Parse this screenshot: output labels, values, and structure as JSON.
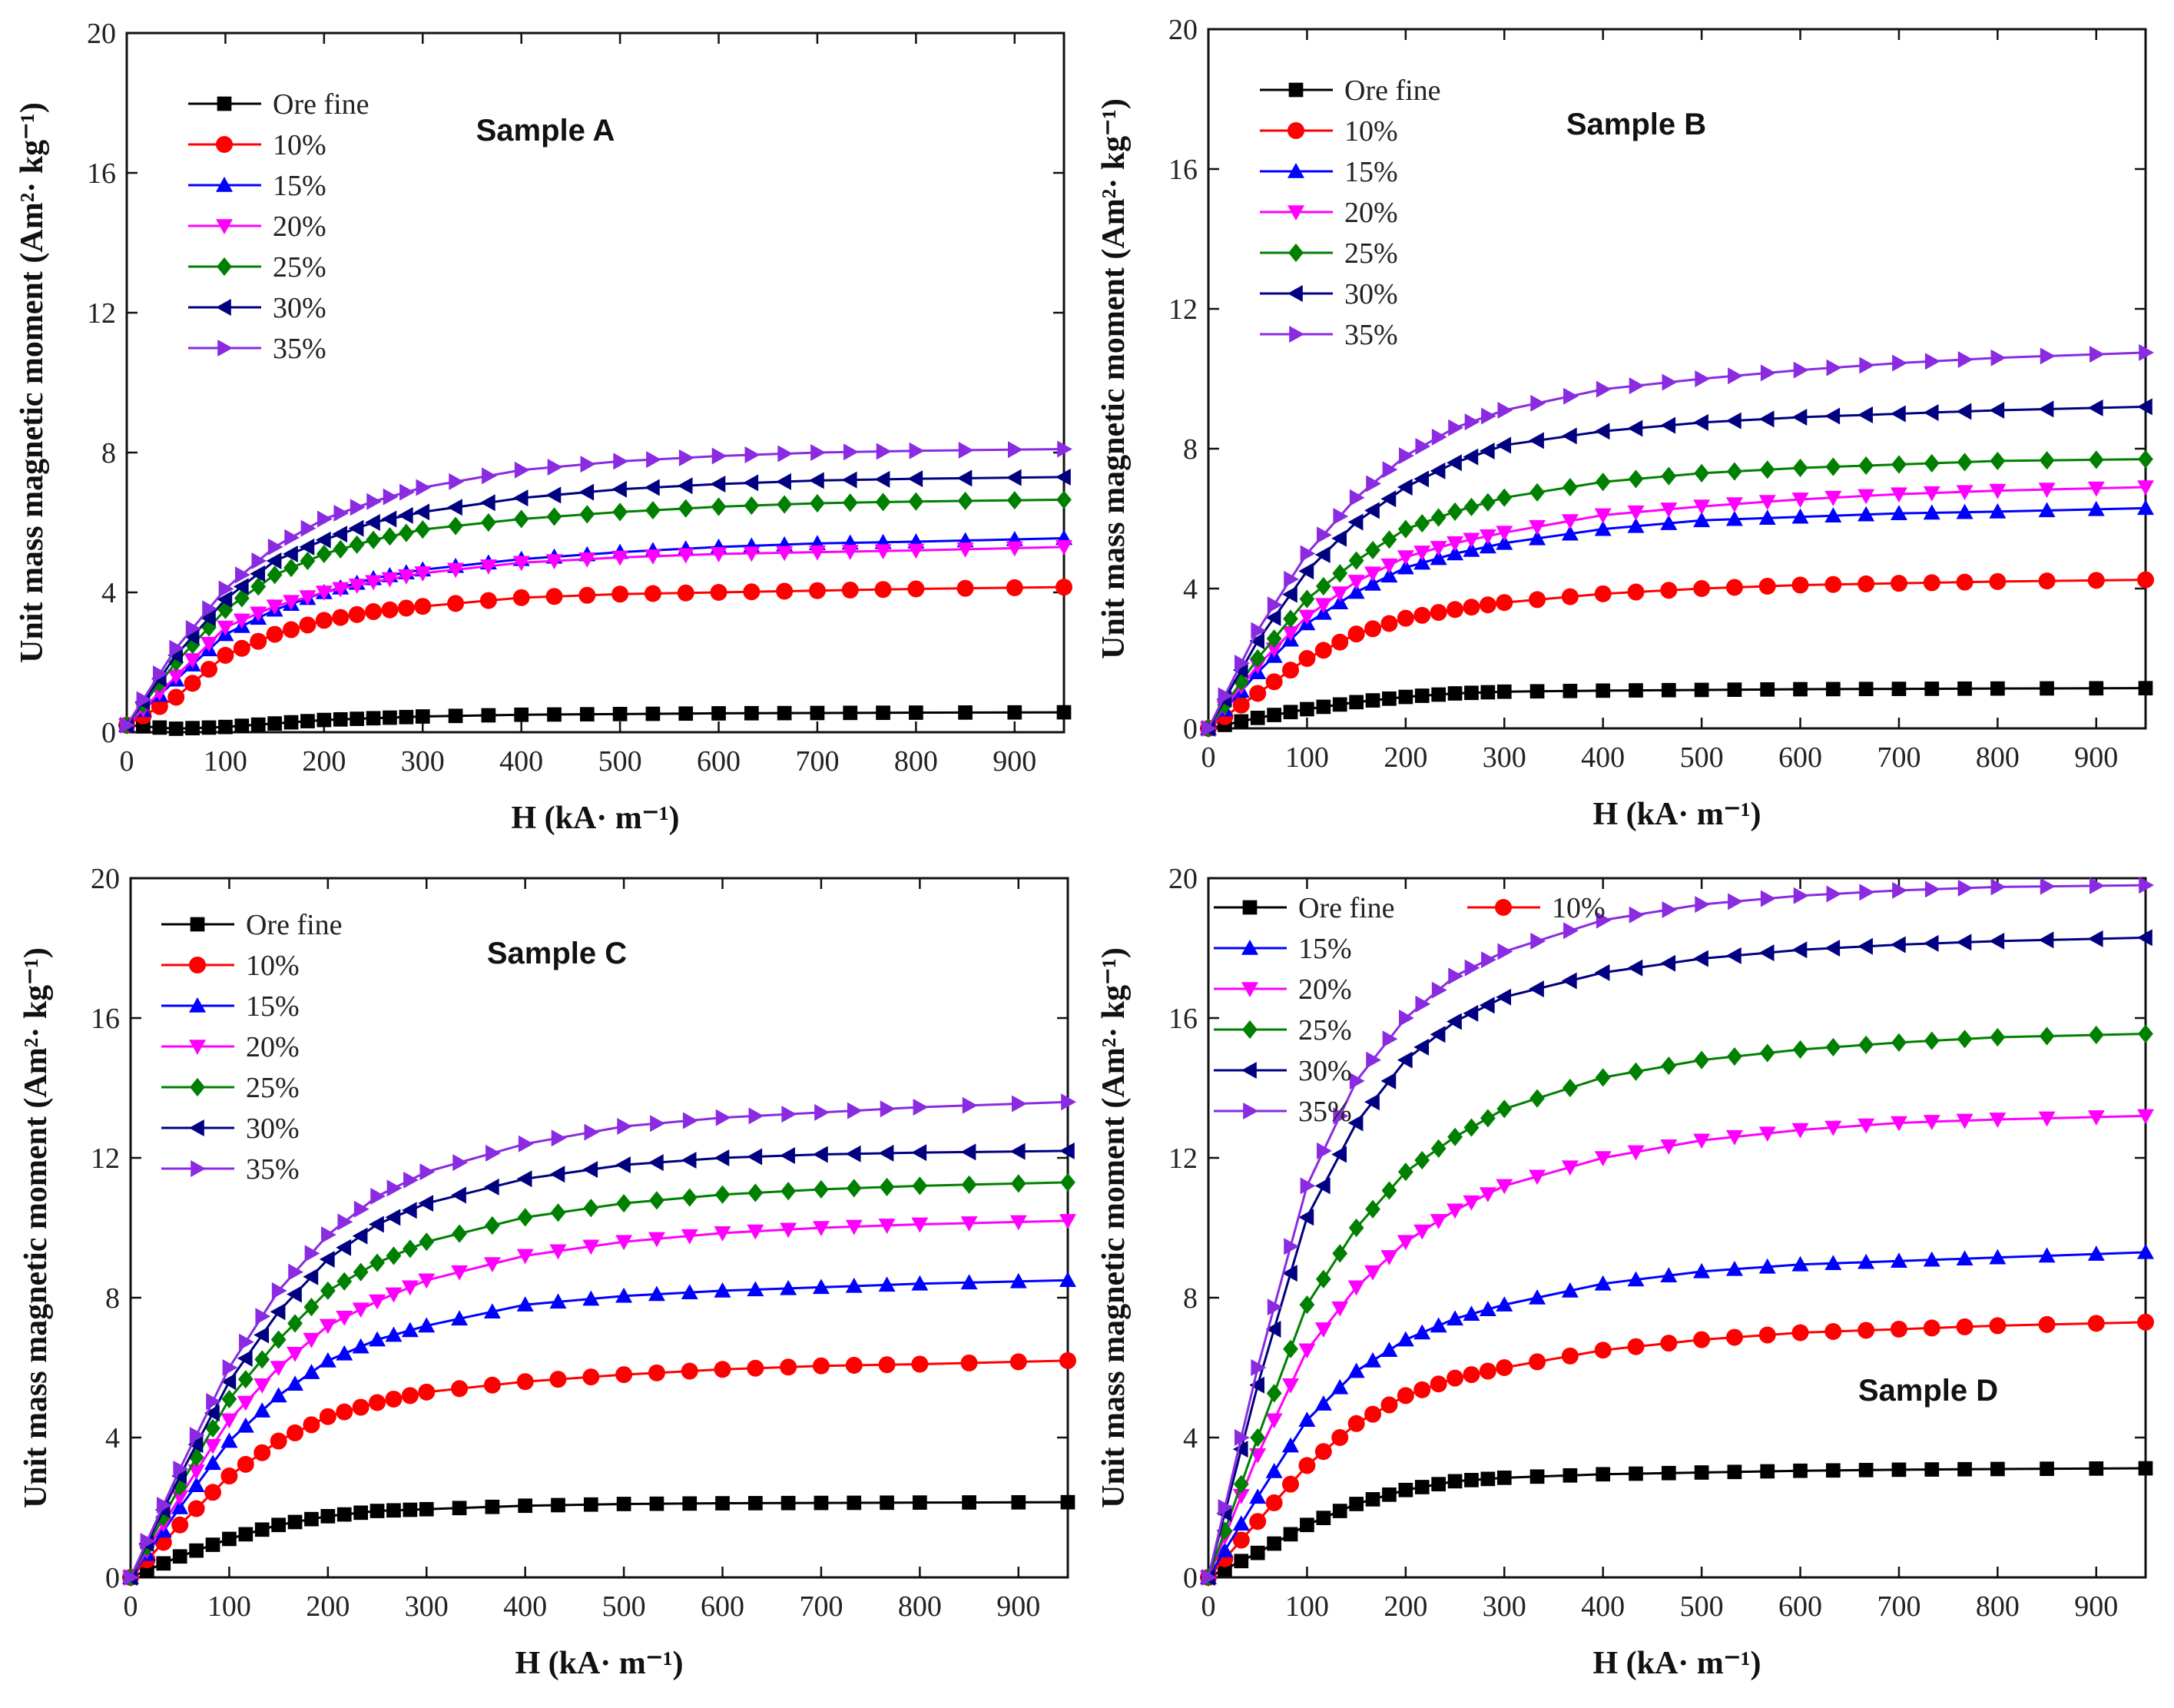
{
  "figure": {
    "series_styles": [
      {
        "name": "Ore fine",
        "color": "#000000",
        "marker": "square"
      },
      {
        "name": "10%",
        "color": "#ff0000",
        "marker": "circle"
      },
      {
        "name": "15%",
        "color": "#0000ff",
        "marker": "triangle-up"
      },
      {
        "name": "20%",
        "color": "#ff00ff",
        "marker": "triangle-down"
      },
      {
        "name": "25%",
        "color": "#008000",
        "marker": "diamond"
      },
      {
        "name": "30%",
        "color": "#000080",
        "marker": "triangle-left"
      },
      {
        "name": "35%",
        "color": "#8a2be2",
        "marker": "triangle-right"
      }
    ]
  },
  "chart_data": [
    {
      "type": "line",
      "title": "Sample A",
      "xlabel": "H (kA· m⁻¹)",
      "ylabel": "Unit mass magnetic moment (Am²· kg⁻¹)",
      "xlim": [
        0,
        950
      ],
      "ylim": [
        0,
        20
      ],
      "xticks": [
        0,
        100,
        200,
        300,
        400,
        500,
        600,
        700,
        800,
        900
      ],
      "yticks": [
        0,
        4,
        8,
        12,
        16,
        20
      ],
      "legend_position": "top-left",
      "x": [
        0,
        50,
        100,
        150,
        200,
        250,
        300,
        400,
        500,
        600,
        700,
        800,
        950
      ],
      "series": [
        {
          "name": "Ore fine",
          "values": [
            0.2,
            0.1,
            0.15,
            0.25,
            0.35,
            0.4,
            0.45,
            0.5,
            0.52,
            0.54,
            0.55,
            0.56,
            0.57
          ]
        },
        {
          "name": "10%",
          "values": [
            0.2,
            1.0,
            2.2,
            2.8,
            3.2,
            3.45,
            3.6,
            3.85,
            3.95,
            4.0,
            4.05,
            4.1,
            4.15
          ]
        },
        {
          "name": "15%",
          "values": [
            0.2,
            1.5,
            2.8,
            3.5,
            4.0,
            4.4,
            4.65,
            4.95,
            5.15,
            5.3,
            5.4,
            5.45,
            5.55
          ]
        },
        {
          "name": "20%",
          "values": [
            0.2,
            1.6,
            3.0,
            3.6,
            4.0,
            4.3,
            4.55,
            4.85,
            5.0,
            5.1,
            5.15,
            5.2,
            5.3
          ]
        },
        {
          "name": "25%",
          "values": [
            0.2,
            2.0,
            3.5,
            4.5,
            5.1,
            5.5,
            5.8,
            6.1,
            6.3,
            6.45,
            6.55,
            6.6,
            6.65
          ]
        },
        {
          "name": "30%",
          "values": [
            0.2,
            2.2,
            3.8,
            4.9,
            5.5,
            6.0,
            6.3,
            6.7,
            6.95,
            7.1,
            7.2,
            7.25,
            7.3
          ]
        },
        {
          "name": "35%",
          "values": [
            0.2,
            2.4,
            4.1,
            5.3,
            6.1,
            6.6,
            7.0,
            7.5,
            7.75,
            7.9,
            8.0,
            8.05,
            8.1
          ]
        }
      ]
    },
    {
      "type": "line",
      "title": "Sample B",
      "xlabel": "H (kA· m⁻¹)",
      "ylabel": "Unit mass magnetic moment (Am²· kg⁻¹)",
      "xlim": [
        0,
        950
      ],
      "ylim": [
        0,
        20
      ],
      "xticks": [
        0,
        100,
        200,
        300,
        400,
        500,
        600,
        700,
        800,
        900
      ],
      "yticks": [
        0,
        4,
        8,
        12,
        16,
        20
      ],
      "legend_position": "top-left",
      "x": [
        0,
        50,
        100,
        150,
        200,
        250,
        300,
        400,
        500,
        600,
        700,
        800,
        950
      ],
      "series": [
        {
          "name": "Ore fine",
          "values": [
            0.0,
            0.3,
            0.55,
            0.75,
            0.9,
            1.0,
            1.05,
            1.08,
            1.1,
            1.12,
            1.13,
            1.14,
            1.15
          ]
        },
        {
          "name": "10%",
          "values": [
            0.0,
            1.0,
            2.0,
            2.7,
            3.15,
            3.4,
            3.6,
            3.85,
            4.0,
            4.1,
            4.15,
            4.2,
            4.25
          ]
        },
        {
          "name": "15%",
          "values": [
            0.0,
            1.6,
            3.0,
            3.9,
            4.6,
            5.0,
            5.3,
            5.7,
            5.95,
            6.05,
            6.15,
            6.2,
            6.3
          ]
        },
        {
          "name": "20%",
          "values": [
            0.0,
            1.8,
            3.2,
            4.2,
            4.9,
            5.3,
            5.6,
            6.1,
            6.35,
            6.55,
            6.7,
            6.8,
            6.9
          ]
        },
        {
          "name": "25%",
          "values": [
            0.0,
            2.0,
            3.7,
            4.8,
            5.7,
            6.2,
            6.6,
            7.05,
            7.3,
            7.45,
            7.55,
            7.65,
            7.7
          ]
        },
        {
          "name": "30%",
          "values": [
            0.0,
            2.5,
            4.5,
            5.9,
            6.9,
            7.6,
            8.1,
            8.5,
            8.75,
            8.9,
            9.0,
            9.1,
            9.2
          ]
        },
        {
          "name": "35%",
          "values": [
            0.0,
            2.8,
            5.0,
            6.6,
            7.8,
            8.6,
            9.1,
            9.7,
            10.0,
            10.25,
            10.45,
            10.6,
            10.75
          ]
        }
      ]
    },
    {
      "type": "line",
      "title": "Sample C",
      "xlabel": "H (kA· m⁻¹)",
      "ylabel": "Unit mass magnetic moment (Am²· kg⁻¹)",
      "xlim": [
        0,
        950
      ],
      "ylim": [
        0,
        20
      ],
      "xticks": [
        0,
        100,
        200,
        300,
        400,
        500,
        600,
        700,
        800,
        900
      ],
      "yticks": [
        0,
        4,
        8,
        12,
        16,
        20
      ],
      "legend_position": "top-left",
      "x": [
        0,
        50,
        100,
        150,
        200,
        250,
        300,
        400,
        500,
        600,
        700,
        800,
        950
      ],
      "series": [
        {
          "name": "Ore fine",
          "values": [
            0.0,
            0.6,
            1.1,
            1.5,
            1.75,
            1.9,
            1.95,
            2.05,
            2.1,
            2.12,
            2.13,
            2.14,
            2.15
          ]
        },
        {
          "name": "10%",
          "values": [
            0.0,
            1.5,
            2.9,
            3.9,
            4.6,
            5.0,
            5.3,
            5.6,
            5.8,
            5.95,
            6.05,
            6.1,
            6.2
          ]
        },
        {
          "name": "15%",
          "values": [
            0.0,
            2.0,
            3.9,
            5.2,
            6.2,
            6.8,
            7.2,
            7.8,
            8.05,
            8.2,
            8.3,
            8.4,
            8.5
          ]
        },
        {
          "name": "20%",
          "values": [
            0.0,
            2.3,
            4.5,
            6.0,
            7.2,
            7.9,
            8.5,
            9.2,
            9.6,
            9.85,
            10.0,
            10.1,
            10.2
          ]
        },
        {
          "name": "25%",
          "values": [
            0.0,
            2.6,
            5.1,
            6.8,
            8.2,
            9.0,
            9.6,
            10.3,
            10.7,
            10.95,
            11.1,
            11.2,
            11.3
          ]
        },
        {
          "name": "30%",
          "values": [
            0.0,
            2.9,
            5.6,
            7.6,
            9.1,
            10.1,
            10.7,
            11.4,
            11.8,
            12.0,
            12.1,
            12.15,
            12.2
          ]
        },
        {
          "name": "35%",
          "values": [
            0.0,
            3.1,
            6.0,
            8.2,
            9.8,
            10.9,
            11.6,
            12.4,
            12.9,
            13.15,
            13.3,
            13.45,
            13.6
          ]
        }
      ]
    },
    {
      "type": "line",
      "title": "Sample D",
      "xlabel": "H (kA· m⁻¹)",
      "ylabel": "Unit mass magnetic moment (Am²· kg⁻¹)",
      "xlim": [
        0,
        950
      ],
      "ylim": [
        0,
        20
      ],
      "xticks": [
        0,
        100,
        200,
        300,
        400,
        500,
        600,
        700,
        800,
        900
      ],
      "yticks": [
        0,
        4,
        8,
        12,
        16,
        20
      ],
      "legend_position": "top-left",
      "x": [
        0,
        50,
        100,
        150,
        200,
        250,
        300,
        400,
        500,
        600,
        700,
        800,
        950
      ],
      "series": [
        {
          "name": "Ore fine",
          "values": [
            0.0,
            0.7,
            1.5,
            2.1,
            2.5,
            2.75,
            2.85,
            2.95,
            3.0,
            3.05,
            3.08,
            3.1,
            3.12
          ]
        },
        {
          "name": "10%",
          "values": [
            0.0,
            1.6,
            3.2,
            4.4,
            5.2,
            5.7,
            6.0,
            6.5,
            6.8,
            7.0,
            7.1,
            7.2,
            7.3
          ]
        },
        {
          "name": "15%",
          "values": [
            0.0,
            2.3,
            4.5,
            5.9,
            6.8,
            7.4,
            7.8,
            8.4,
            8.75,
            8.95,
            9.05,
            9.15,
            9.3
          ]
        },
        {
          "name": "20%",
          "values": [
            0.0,
            3.5,
            6.5,
            8.3,
            9.6,
            10.5,
            11.2,
            12.0,
            12.5,
            12.8,
            13.0,
            13.1,
            13.2
          ]
        },
        {
          "name": "25%",
          "values": [
            0.0,
            4.0,
            7.8,
            10.0,
            11.6,
            12.6,
            13.4,
            14.3,
            14.8,
            15.1,
            15.3,
            15.45,
            15.55
          ]
        },
        {
          "name": "30%",
          "values": [
            0.0,
            5.5,
            10.3,
            13.0,
            14.8,
            15.9,
            16.6,
            17.3,
            17.7,
            17.95,
            18.1,
            18.2,
            18.3
          ]
        },
        {
          "name": "35%",
          "values": [
            0.0,
            6.0,
            11.2,
            14.2,
            16.0,
            17.2,
            17.9,
            18.8,
            19.25,
            19.5,
            19.65,
            19.75,
            19.8
          ]
        }
      ]
    }
  ]
}
